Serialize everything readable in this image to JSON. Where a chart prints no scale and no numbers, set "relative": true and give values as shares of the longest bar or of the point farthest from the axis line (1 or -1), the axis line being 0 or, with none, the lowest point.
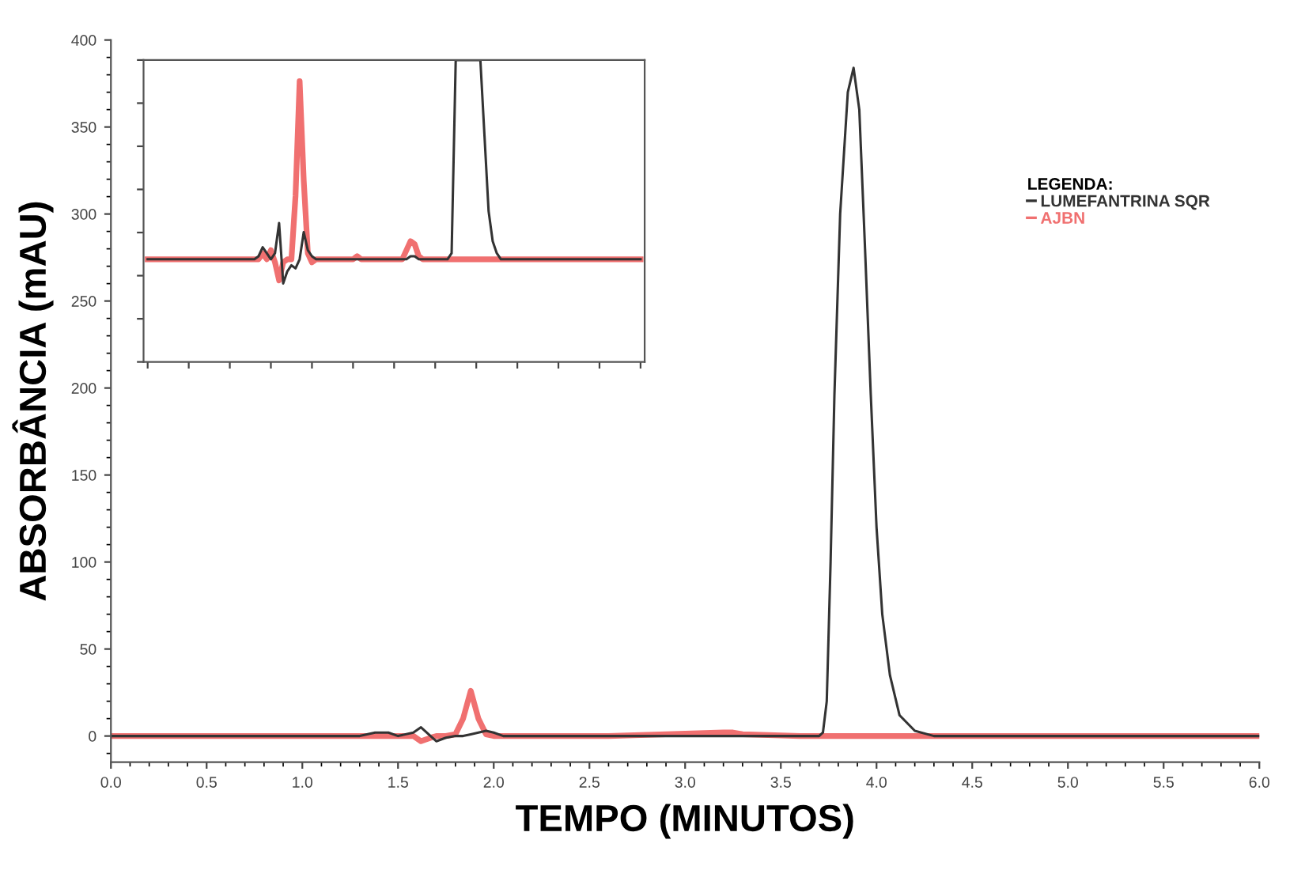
{
  "chart_data": [
    {
      "type": "line",
      "xlabel": "TEMPO (MINUTOS)",
      "ylabel": "ABSORBÂNCIA (mAU)",
      "legend_title": "LEGENDA:",
      "legend": "top right",
      "grid": false,
      "marker": "none",
      "line_style": "solid",
      "x": [
        0,
        1.3,
        1.38,
        1.45,
        1.5,
        1.58,
        1.62,
        1.67,
        1.7,
        1.75,
        1.8,
        1.84,
        1.88,
        1.92,
        1.96,
        2.0,
        2.05,
        2.6,
        3.2,
        3.25,
        3.3,
        3.6,
        3.7,
        3.72,
        3.74,
        3.76,
        3.78,
        3.81,
        3.85,
        3.88,
        3.91,
        3.94,
        3.97,
        4.0,
        4.03,
        4.07,
        4.12,
        4.2,
        4.3,
        6
      ],
      "xlim": [
        0,
        6
      ],
      "ylim": [
        -15,
        400
      ],
      "xticks": [
        {
          "value": 0,
          "label": "0.0"
        },
        {
          "value": 0.5,
          "label": "0.5"
        },
        {
          "value": 1,
          "label": "1.0"
        },
        {
          "value": 1.5,
          "label": "1.5"
        },
        {
          "value": 2,
          "label": "2.0"
        },
        {
          "value": 2.5,
          "label": "2.5"
        },
        {
          "value": 3,
          "label": "3.0"
        },
        {
          "value": 3.5,
          "label": "3.5"
        },
        {
          "value": 4,
          "label": "4.0"
        },
        {
          "value": 4.5,
          "label": "4.5"
        },
        {
          "value": 5,
          "label": "5.0"
        },
        {
          "value": 5.5,
          "label": "5.5"
        },
        {
          "value": 6,
          "label": "6.0"
        }
      ],
      "yticks": [
        0,
        50,
        100,
        150,
        200,
        250,
        300,
        350,
        400
      ],
      "series": [
        {
          "name": "LUMEFANTRINA SQR",
          "color": "#333333",
          "values": [
            0,
            0,
            2,
            2,
            0,
            2,
            5,
            0,
            -3,
            -1,
            0,
            0,
            1,
            2,
            3,
            2,
            0,
            0,
            0,
            0,
            0,
            0,
            0,
            2,
            20,
            100,
            196,
            300,
            370,
            384,
            360,
            280,
            196,
            120,
            70,
            35,
            12,
            3,
            0,
            0
          ]
        },
        {
          "name": "AJBN",
          "color": "#f07070",
          "values": [
            0,
            0,
            0,
            0,
            0,
            0,
            -3,
            -1,
            0,
            0,
            1,
            10,
            26,
            10,
            1,
            0,
            0,
            0,
            2,
            2,
            1,
            0,
            0,
            0,
            0,
            0,
            0,
            0,
            0,
            0,
            0,
            0,
            0,
            0,
            0,
            0,
            0,
            0,
            0,
            0
          ]
        }
      ]
    },
    {
      "type": "line",
      "relative": true,
      "tick_labels": false,
      "marker": "none",
      "line_style": "solid",
      "categories": [
        null,
        null,
        null,
        null,
        null,
        null,
        null,
        null,
        null,
        null,
        null,
        null,
        null,
        null,
        null,
        null,
        null,
        null,
        null,
        null,
        null,
        null,
        null,
        null,
        null,
        null,
        null,
        null,
        null,
        null,
        null,
        null,
        null,
        null,
        null,
        null,
        null,
        null,
        null,
        null,
        null,
        null,
        null,
        null,
        null,
        null,
        null,
        null,
        null,
        null,
        null,
        null,
        null,
        null,
        null,
        null,
        null,
        null,
        null,
        null,
        null,
        null,
        null,
        null,
        null,
        null,
        null,
        null,
        null,
        null,
        null,
        null,
        null,
        null,
        null,
        null,
        null,
        null,
        null,
        null,
        null,
        null,
        null,
        null,
        null,
        null,
        null,
        null,
        null,
        null,
        null,
        null,
        null,
        null,
        null,
        null,
        null,
        null,
        null,
        null,
        null,
        null,
        null,
        null,
        null,
        null,
        null,
        null,
        null,
        null,
        null,
        null,
        null,
        null,
        null,
        null,
        null,
        null,
        null,
        null,
        null
      ],
      "series": [
        {
          "color": "#333333",
          "values": [
            0.34,
            0.34,
            0.34,
            0.34,
            0.34,
            0.34,
            0.34,
            0.34,
            0.34,
            0.34,
            0.34,
            0.34,
            0.34,
            0.34,
            0.34,
            0.34,
            0.34,
            0.34,
            0.34,
            0.34,
            0.34,
            0.34,
            0.34,
            0.34,
            0.34,
            0.34,
            0.34,
            0.35,
            0.38,
            0.36,
            0.34,
            0.36,
            0.46,
            0.26,
            0.3,
            0.32,
            0.31,
            0.34,
            0.43,
            0.37,
            0.35,
            0.34,
            0.34,
            0.34,
            0.34,
            0.34,
            0.34,
            0.34,
            0.34,
            0.34,
            0.34,
            0.34,
            0.34,
            0.34,
            0.34,
            0.34,
            0.34,
            0.34,
            0.34,
            0.34,
            0.34,
            0.34,
            0.34,
            0.34,
            0.35,
            0.35,
            0.34,
            0.34,
            0.34,
            0.34,
            0.34,
            0.34,
            0.34,
            0.34,
            0.36,
            1,
            1,
            1,
            1,
            1,
            1,
            1,
            0.75,
            0.5,
            0.4,
            0.36,
            0.34,
            0.34,
            0.34,
            0.34,
            0.34,
            0.34,
            0.34,
            0.34,
            0.34,
            0.34,
            0.34,
            0.34,
            0.34,
            0.34,
            0.34,
            0.34,
            0.34,
            0.34,
            0.34,
            0.34,
            0.34,
            0.34,
            0.34,
            0.34,
            0.34,
            0.34,
            0.34,
            0.34,
            0.34,
            0.34,
            0.34,
            0.34,
            0.34,
            0.34,
            0.34
          ]
        },
        {
          "color": "#f07070",
          "values": [
            0.34,
            0.34,
            0.34,
            0.34,
            0.34,
            0.34,
            0.34,
            0.34,
            0.34,
            0.34,
            0.34,
            0.34,
            0.34,
            0.34,
            0.34,
            0.34,
            0.34,
            0.34,
            0.34,
            0.34,
            0.34,
            0.34,
            0.34,
            0.34,
            0.34,
            0.34,
            0.34,
            0.34,
            0.36,
            0.34,
            0.37,
            0.33,
            0.27,
            0.33,
            0.34,
            0.34,
            0.55,
            0.93,
            0.6,
            0.36,
            0.33,
            0.34,
            0.34,
            0.34,
            0.34,
            0.34,
            0.34,
            0.34,
            0.34,
            0.34,
            0.34,
            0.35,
            0.34,
            0.34,
            0.34,
            0.34,
            0.34,
            0.34,
            0.34,
            0.34,
            0.34,
            0.34,
            0.34,
            0.37,
            0.4,
            0.39,
            0.35,
            0.34,
            0.34,
            0.34,
            0.34,
            0.34,
            0.34,
            0.34,
            0.34,
            0.34,
            0.34,
            0.34,
            0.34,
            0.34,
            0.34,
            0.34,
            0.34,
            0.34,
            0.34,
            0.34,
            0.34,
            0.34,
            0.34,
            0.34,
            0.34,
            0.34,
            0.34,
            0.34,
            0.34,
            0.34,
            0.34,
            0.34,
            0.34,
            0.34,
            0.34,
            0.34,
            0.34,
            0.34,
            0.34,
            0.34,
            0.34,
            0.34,
            0.34,
            0.34,
            0.34,
            0.34,
            0.34,
            0.34,
            0.34,
            0.34,
            0.34,
            0.34,
            0.34,
            0.34,
            0.34
          ]
        }
      ]
    }
  ]
}
